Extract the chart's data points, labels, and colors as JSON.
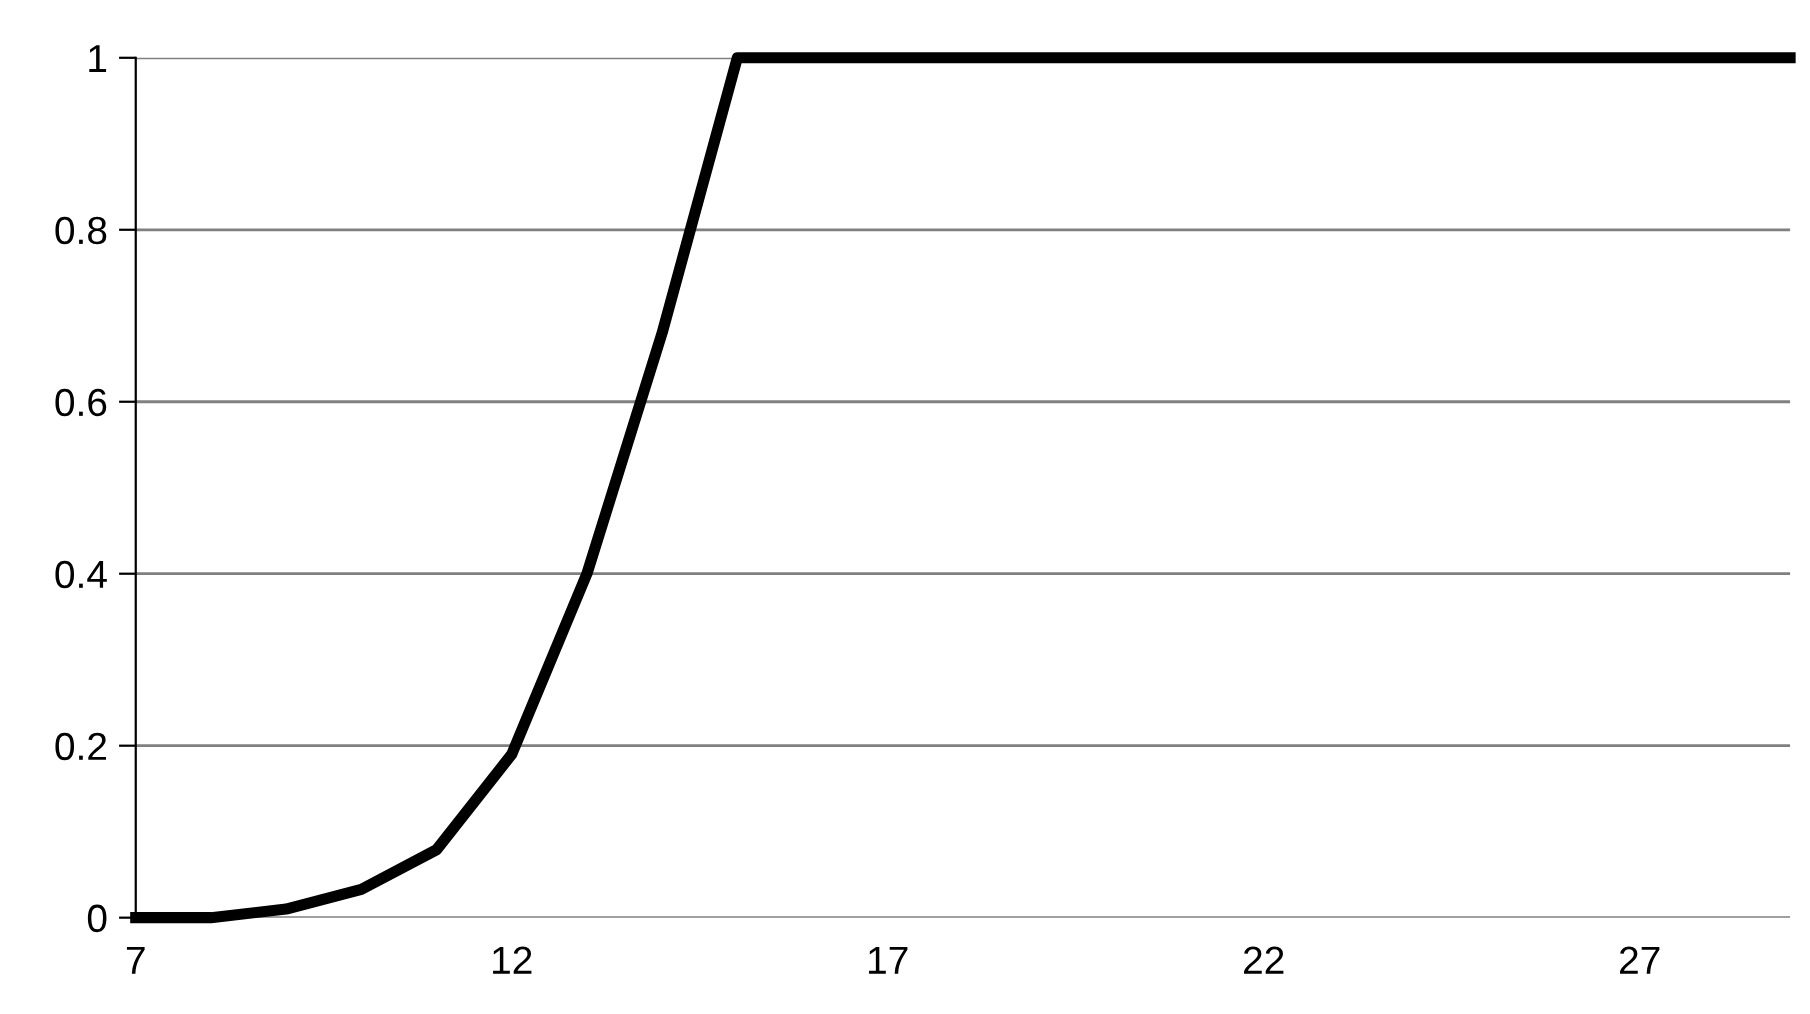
{
  "chart_data": {
    "type": "line",
    "x": [
      7,
      8,
      9,
      10,
      11,
      12,
      13,
      14,
      15,
      16,
      17,
      18,
      19,
      20,
      21,
      22,
      23,
      24,
      25,
      26,
      27,
      28,
      29
    ],
    "series": [
      {
        "color": "#000000",
        "values": [
          0,
          0,
          0.01,
          0.033,
          0.079,
          0.19,
          0.4,
          0.68,
          1,
          1,
          1,
          1,
          1,
          1,
          1,
          1,
          1,
          1,
          1,
          1,
          1,
          1,
          1
        ]
      }
    ],
    "xlim": [
      7,
      29
    ],
    "xticks": [
      7,
      12,
      17,
      22,
      27
    ],
    "ylim": [
      0,
      1
    ],
    "yticks": [
      0,
      0.2,
      0.4,
      0.6,
      0.8,
      1
    ],
    "grid": "y",
    "marker": "none",
    "line_style": "solid"
  }
}
